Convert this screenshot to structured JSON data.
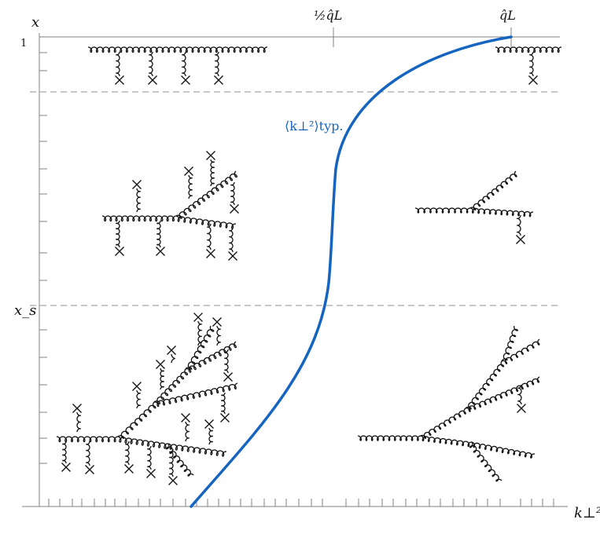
{
  "axes": {
    "y_label": "x",
    "x_label": "k⊥²",
    "y_tick_top": "1",
    "y_tick_mid": "x_s",
    "x_tick_half": "½q̂L",
    "x_tick_end": "q̂L"
  },
  "curve": {
    "label": "⟨k⊥²⟩typ.",
    "color": "#1565c0"
  },
  "colors": {
    "axis": "#808080",
    "dashed": "#909090",
    "ink": "#111111"
  }
}
